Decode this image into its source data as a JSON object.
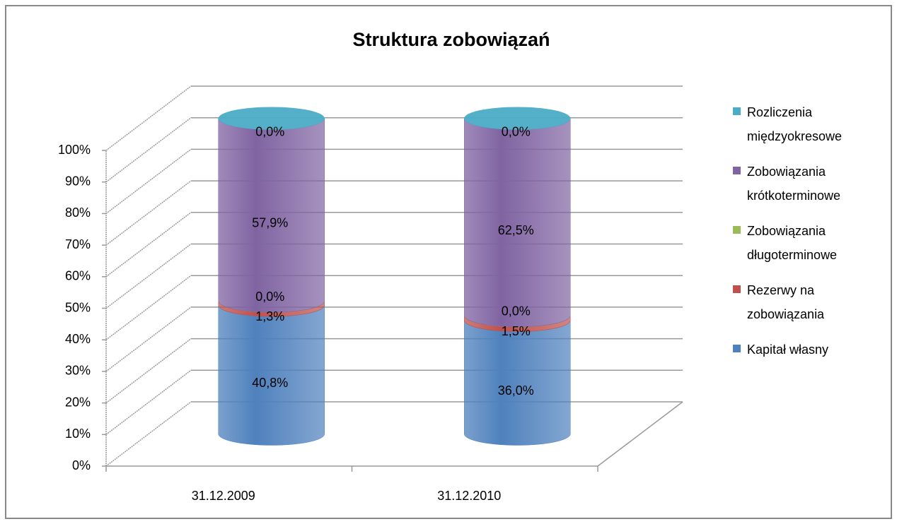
{
  "chart_data": {
    "type": "bar3d_stacked",
    "title": "Struktura zobowiązań",
    "categories": [
      "31.12.2009",
      "31.12.2010"
    ],
    "series": [
      {
        "name": "Kapitał własny",
        "color": "#4f81bd",
        "values": [
          40.8,
          36.0
        ],
        "value_labels": [
          "40,8%",
          "36,0%"
        ]
      },
      {
        "name": "Rezerwy na zobowiązania",
        "color": "#c0504d",
        "values": [
          1.3,
          1.5
        ],
        "value_labels": [
          "1,3%",
          "1,5%"
        ]
      },
      {
        "name": "Zobowiązania długoterminowe",
        "color": "#9bbb59",
        "values": [
          0.0,
          0.0
        ],
        "value_labels": [
          "0,0%",
          "0,0%"
        ]
      },
      {
        "name": "Zobowiązania krótkoterminowe",
        "color": "#8064a2",
        "values": [
          57.9,
          62.5
        ],
        "value_labels": [
          "57,9%",
          "62,5%"
        ]
      },
      {
        "name": "Rozliczenia międzyokresowe",
        "color": "#4bacc6",
        "values": [
          0.0,
          0.0
        ],
        "value_labels": [
          "0,0%",
          "0,0%"
        ]
      }
    ],
    "ylim": [
      0,
      100
    ],
    "yticks": [
      {
        "value": 0,
        "label": "0%"
      },
      {
        "value": 10,
        "label": "10%"
      },
      {
        "value": 20,
        "label": "20%"
      },
      {
        "value": 30,
        "label": "30%"
      },
      {
        "value": 40,
        "label": "40%"
      },
      {
        "value": 50,
        "label": "50%"
      },
      {
        "value": 60,
        "label": "60%"
      },
      {
        "value": 70,
        "label": "70%"
      },
      {
        "value": 80,
        "label": "80%"
      },
      {
        "value": 90,
        "label": "90%"
      },
      {
        "value": 100,
        "label": "100%"
      }
    ],
    "grid": true,
    "legend": "right"
  }
}
